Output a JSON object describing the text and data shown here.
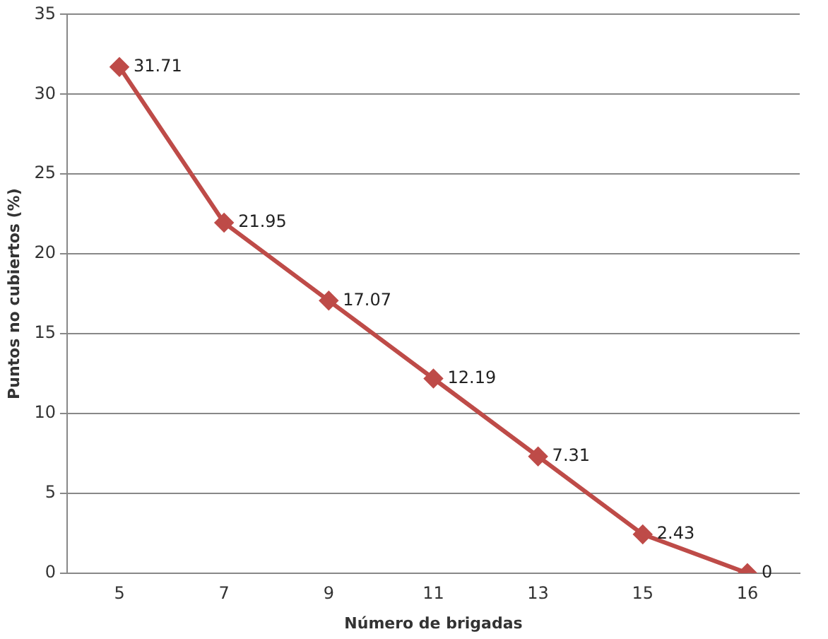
{
  "chart_data": {
    "type": "line",
    "xlabel": "Número de brigadas",
    "ylabel": "Puntos no cubiertos (%)",
    "categories": [
      "5",
      "7",
      "9",
      "11",
      "13",
      "15",
      "16"
    ],
    "series": [
      {
        "color": "#be4b48",
        "values": [
          31.71,
          21.95,
          17.07,
          12.19,
          7.31,
          2.43,
          0
        ]
      }
    ],
    "ylim": [
      0,
      35
    ],
    "yticks": [
      0,
      5,
      10,
      15,
      20,
      25,
      30,
      35
    ],
    "grid": "y",
    "legend": false,
    "marker": "diamond",
    "line_style": "solid",
    "data_labels": true
  }
}
